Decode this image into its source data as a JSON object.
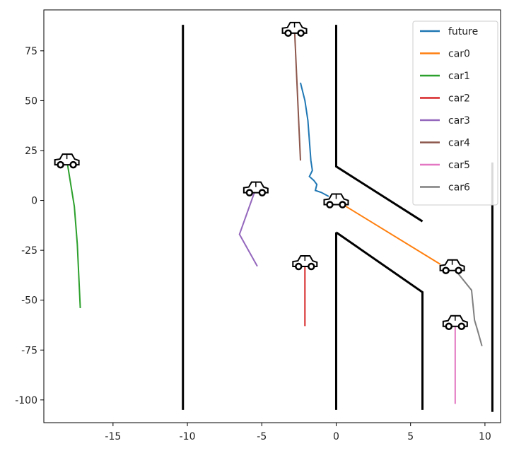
{
  "chart_data": {
    "type": "line",
    "xlim": [
      -19.65,
      11.05
    ],
    "ylim": [
      -111.4,
      95.5
    ],
    "xticks": [
      -15,
      -10,
      -5,
      0,
      5,
      10
    ],
    "yticks": [
      -100,
      -75,
      -50,
      -25,
      0,
      25,
      50,
      75
    ],
    "legend": "upper right",
    "boundary_color": "#000000",
    "boundaries": [
      {
        "x": [
          -10.3,
          -10.3
        ],
        "y": [
          88,
          -105
        ]
      },
      {
        "x": [
          0,
          0,
          5.8
        ],
        "y": [
          88,
          17,
          -10.5
        ]
      },
      {
        "x": [
          0,
          0
        ],
        "y": [
          -16,
          -105
        ]
      },
      {
        "x": [
          0,
          5.8,
          5.8
        ],
        "y": [
          -16,
          -46,
          -105
        ]
      },
      {
        "x": [
          10.5,
          10.5
        ],
        "y": [
          19,
          -106
        ]
      }
    ],
    "series": [
      {
        "name": "future",
        "color": "#1f77b4",
        "x": [
          -2.4,
          -2.1,
          -1.9,
          -1.8,
          -1.7,
          -1.6,
          -1.8,
          -1.5,
          -1.3,
          -1.4,
          -1.0,
          -0.5
        ],
        "y": [
          59,
          50,
          40,
          30,
          20,
          15,
          12,
          10,
          8,
          5,
          4,
          2
        ]
      },
      {
        "name": "car0",
        "color": "#ff7f0e",
        "start_marker": "car",
        "x": [
          0,
          7.0
        ],
        "y": [
          0,
          -32
        ]
      },
      {
        "name": "car1",
        "color": "#2ca02c",
        "start_marker": "car",
        "x": [
          -18.1,
          -17.6,
          -17.4,
          -17.2
        ],
        "y": [
          20,
          -3,
          -22,
          -54
        ]
      },
      {
        "name": "car2",
        "color": "#d62728",
        "start_marker": "car",
        "x": [
          -2.1,
          -2.1
        ],
        "y": [
          -31,
          -63
        ]
      },
      {
        "name": "car3",
        "color": "#9467bd",
        "start_marker": "car",
        "x": [
          -5.4,
          -6.5,
          -5.3
        ],
        "y": [
          6,
          -17,
          -33
        ]
      },
      {
        "name": "car4",
        "color": "#8c564b",
        "start_marker": "car",
        "x": [
          -2.8,
          -2.4
        ],
        "y": [
          86,
          20
        ]
      },
      {
        "name": "car5",
        "color": "#e377c2",
        "start_marker": "car",
        "x": [
          8.0,
          8.0
        ],
        "y": [
          -61,
          -102
        ]
      },
      {
        "name": "car6",
        "color": "#7f7f7f",
        "start_marker": "car",
        "x": [
          7.8,
          9.1,
          9.3,
          9.5,
          9.8
        ],
        "y": [
          -33,
          -45,
          -60,
          -65,
          -73
        ]
      }
    ]
  }
}
